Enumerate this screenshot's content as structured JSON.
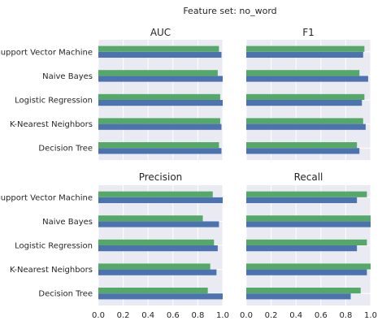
{
  "suptitle": "Feature set: no_word",
  "chart_data": [
    {
      "type": "bar",
      "orientation": "horizontal",
      "title": "AUC",
      "categories": [
        "Support Vector Machine",
        "Naive Bayes",
        "Logistic Regression",
        "K-Nearest Neighbors",
        "Decision Tree"
      ],
      "series": [
        {
          "values": [
            0.99,
            1.0,
            1.0,
            0.99,
            0.99
          ],
          "color": "#4c72b0"
        },
        {
          "values": [
            0.97,
            0.96,
            0.98,
            0.98,
            0.97
          ],
          "color": "#55a868"
        }
      ],
      "xlim": [
        0,
        1
      ],
      "show_xticks": false,
      "show_yticks": true,
      "grid": true
    },
    {
      "type": "bar",
      "orientation": "horizontal",
      "title": "F1",
      "categories": [
        "Support Vector Machine",
        "Naive Bayes",
        "Logistic Regression",
        "K-Nearest Neighbors",
        "Decision Tree"
      ],
      "series": [
        {
          "values": [
            0.94,
            0.98,
            0.93,
            0.96,
            0.91
          ],
          "color": "#4c72b0"
        },
        {
          "values": [
            0.95,
            0.91,
            0.95,
            0.94,
            0.89
          ],
          "color": "#55a868"
        }
      ],
      "xlim": [
        0,
        1
      ],
      "show_xticks": false,
      "show_yticks": false,
      "grid": true
    },
    {
      "type": "bar",
      "orientation": "horizontal",
      "title": "Precision",
      "categories": [
        "Support Vector Machine",
        "Naive Bayes",
        "Logistic Regression",
        "K-Nearest Neighbors",
        "Decision Tree"
      ],
      "series": [
        {
          "values": [
            1.0,
            0.97,
            0.96,
            0.95,
            1.0
          ],
          "color": "#4c72b0"
        },
        {
          "values": [
            0.92,
            0.84,
            0.93,
            0.9,
            0.88
          ],
          "color": "#55a868"
        }
      ],
      "xlim": [
        0,
        1
      ],
      "show_xticks": true,
      "show_yticks": true,
      "grid": true
    },
    {
      "type": "bar",
      "orientation": "horizontal",
      "title": "Recall",
      "categories": [
        "Support Vector Machine",
        "Naive Bayes",
        "Logistic Regression",
        "K-Nearest Neighbors",
        "Decision Tree"
      ],
      "series": [
        {
          "values": [
            0.89,
            1.0,
            0.89,
            0.97,
            0.84
          ],
          "color": "#4c72b0"
        },
        {
          "values": [
            0.97,
            1.0,
            0.97,
            1.0,
            0.92
          ],
          "color": "#55a868"
        }
      ],
      "xlim": [
        0,
        1
      ],
      "show_xticks": true,
      "show_yticks": false,
      "grid": true
    }
  ],
  "xtick_labels": [
    "0.0",
    "0.2",
    "0.4",
    "0.6",
    "0.8",
    "1.0"
  ],
  "colors": {
    "panel_bg": "#eaeaf2",
    "grid": "#ffffff",
    "text": "#262626"
  }
}
